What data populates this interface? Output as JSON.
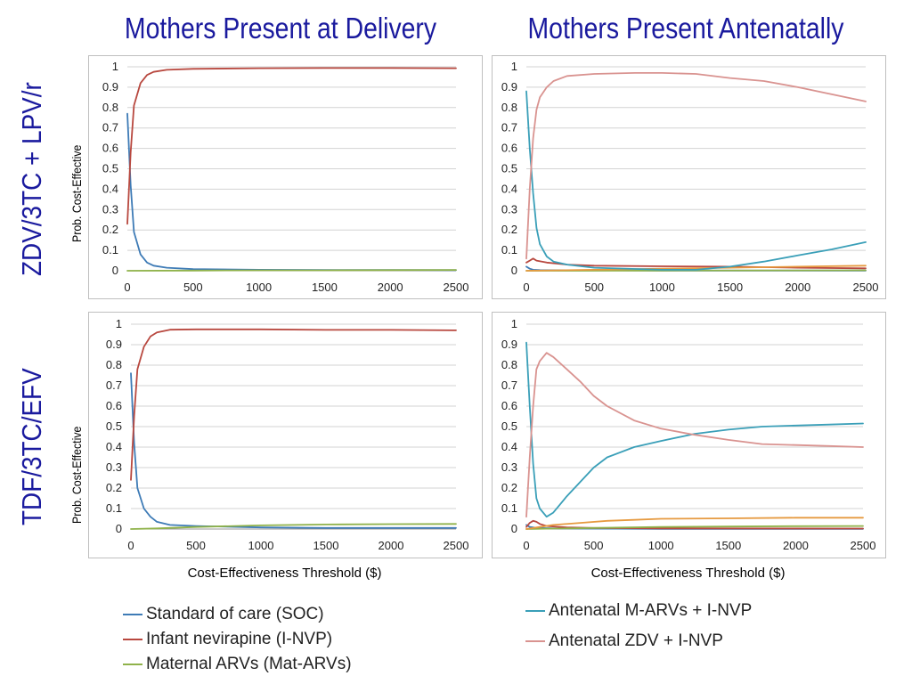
{
  "titles": {
    "col_left": "Mothers Present at Delivery",
    "col_right": "Mothers Present Antenatally",
    "row_top": "ZDV/3TC + LPV/r",
    "row_bottom": "TDF/3TC/EFV"
  },
  "axis": {
    "ylabel": "Prob. Cost-Effective",
    "xlabel": "Cost-Effectiveness Threshold ($)"
  },
  "legend": [
    {
      "key": "soc",
      "label": "Standard of care (SOC)",
      "color": "#3e7bb6"
    },
    {
      "key": "invp",
      "label": "Infant nevirapine (I-NVP)",
      "color": "#b8483f"
    },
    {
      "key": "mat",
      "label": "Maternal ARVs (Mat-ARVs)",
      "color": "#8fb24a"
    },
    {
      "key": "marv",
      "label": "Antenatal M-ARVs + I-NVP",
      "color": "#3a9fb8"
    },
    {
      "key": "zdv",
      "label": "Antenatal ZDV + I-NVP",
      "color": "#d99390"
    }
  ],
  "chart_data": [
    {
      "type": "line",
      "xlim": [
        0,
        2500
      ],
      "ylim": [
        0,
        1
      ],
      "xticks": [
        "0",
        "500",
        "1000",
        "1500",
        "2000",
        "2500"
      ],
      "yticks": [
        "0",
        "0.1",
        "0.2",
        "0.3",
        "0.4",
        "0.5",
        "0.6",
        "0.7",
        "0.8",
        "0.9",
        "1"
      ],
      "grid": true,
      "series": [
        {
          "key": "soc",
          "color": "#3e7bb6",
          "points": [
            [
              0,
              0.77
            ],
            [
              25,
              0.42
            ],
            [
              50,
              0.19
            ],
            [
              100,
              0.08
            ],
            [
              150,
              0.04
            ],
            [
              200,
              0.025
            ],
            [
              300,
              0.015
            ],
            [
              500,
              0.008
            ],
            [
              1000,
              0.005
            ],
            [
              1500,
              0.004
            ],
            [
              2000,
              0.004
            ],
            [
              2500,
              0.003
            ]
          ]
        },
        {
          "key": "invp",
          "color": "#b8483f",
          "points": [
            [
              0,
              0.23
            ],
            [
              25,
              0.58
            ],
            [
              50,
              0.81
            ],
            [
              100,
              0.92
            ],
            [
              150,
              0.96
            ],
            [
              200,
              0.975
            ],
            [
              300,
              0.985
            ],
            [
              500,
              0.99
            ],
            [
              1000,
              0.993
            ],
            [
              1500,
              0.994
            ],
            [
              2000,
              0.994
            ],
            [
              2500,
              0.993
            ]
          ]
        },
        {
          "key": "mat",
          "color": "#8fb24a",
          "points": [
            [
              0,
              0
            ],
            [
              500,
              0.001
            ],
            [
              1000,
              0.002
            ],
            [
              1500,
              0.002
            ],
            [
              2000,
              0.003
            ],
            [
              2500,
              0.004
            ]
          ]
        }
      ]
    },
    {
      "type": "line",
      "xlim": [
        0,
        2500
      ],
      "ylim": [
        0,
        1
      ],
      "xticks": [
        "0",
        "500",
        "1000",
        "1500",
        "2000",
        "2500"
      ],
      "yticks": [
        "0",
        "0.1",
        "0.2",
        "0.3",
        "0.4",
        "0.5",
        "0.6",
        "0.7",
        "0.8",
        "0.9",
        "1"
      ],
      "grid": true,
      "series": [
        {
          "key": "soc",
          "color": "#3e7bb6",
          "points": [
            [
              0,
              0.02
            ],
            [
              25,
              0.01
            ],
            [
              50,
              0.005
            ],
            [
              100,
              0.003
            ],
            [
              500,
              0.002
            ],
            [
              1000,
              0.001
            ],
            [
              1500,
              0.001
            ],
            [
              2000,
              0.001
            ],
            [
              2500,
              0.001
            ]
          ]
        },
        {
          "key": "invp",
          "color": "#b8483f",
          "points": [
            [
              0,
              0.04
            ],
            [
              25,
              0.05
            ],
            [
              50,
              0.06
            ],
            [
              75,
              0.05
            ],
            [
              150,
              0.04
            ],
            [
              300,
              0.03
            ],
            [
              500,
              0.025
            ],
            [
              1000,
              0.022
            ],
            [
              1500,
              0.02
            ],
            [
              2000,
              0.015
            ],
            [
              2500,
              0.012
            ]
          ]
        },
        {
          "key": "mat",
          "color": "#8fb24a",
          "points": [
            [
              0,
              0
            ],
            [
              1000,
              0.001
            ],
            [
              2500,
              0.002
            ]
          ]
        },
        {
          "key": "other",
          "color": "#e69a40",
          "points": [
            [
              0,
              0
            ],
            [
              500,
              0.005
            ],
            [
              1000,
              0.01
            ],
            [
              1500,
              0.015
            ],
            [
              2000,
              0.02
            ],
            [
              2500,
              0.025
            ]
          ]
        },
        {
          "key": "marv",
          "color": "#3a9fb8",
          "points": [
            [
              0,
              0.88
            ],
            [
              25,
              0.6
            ],
            [
              50,
              0.38
            ],
            [
              75,
              0.21
            ],
            [
              100,
              0.13
            ],
            [
              150,
              0.07
            ],
            [
              200,
              0.045
            ],
            [
              300,
              0.03
            ],
            [
              500,
              0.015
            ],
            [
              1000,
              0.005
            ],
            [
              1250,
              0.005
            ],
            [
              1500,
              0.02
            ],
            [
              1750,
              0.045
            ],
            [
              2000,
              0.075
            ],
            [
              2250,
              0.105
            ],
            [
              2500,
              0.14
            ]
          ]
        },
        {
          "key": "zdv",
          "color": "#d99390",
          "points": [
            [
              0,
              0.06
            ],
            [
              25,
              0.4
            ],
            [
              50,
              0.65
            ],
            [
              75,
              0.79
            ],
            [
              100,
              0.85
            ],
            [
              150,
              0.9
            ],
            [
              200,
              0.93
            ],
            [
              300,
              0.955
            ],
            [
              500,
              0.965
            ],
            [
              800,
              0.97
            ],
            [
              1000,
              0.97
            ],
            [
              1250,
              0.965
            ],
            [
              1500,
              0.945
            ],
            [
              1750,
              0.93
            ],
            [
              2000,
              0.9
            ],
            [
              2250,
              0.865
            ],
            [
              2500,
              0.83
            ]
          ]
        }
      ]
    },
    {
      "type": "line",
      "xlim": [
        0,
        2500
      ],
      "ylim": [
        0,
        1
      ],
      "xticks": [
        "0",
        "500",
        "1000",
        "1500",
        "2000",
        "2500"
      ],
      "yticks": [
        "0",
        "0.1",
        "0.2",
        "0.3",
        "0.4",
        "0.5",
        "0.6",
        "0.7",
        "0.8",
        "0.9",
        "1"
      ],
      "grid": true,
      "series": [
        {
          "key": "soc",
          "color": "#3e7bb6",
          "points": [
            [
              0,
              0.76
            ],
            [
              25,
              0.42
            ],
            [
              50,
              0.2
            ],
            [
              100,
              0.1
            ],
            [
              150,
              0.06
            ],
            [
              200,
              0.035
            ],
            [
              300,
              0.02
            ],
            [
              500,
              0.015
            ],
            [
              1000,
              0.008
            ],
            [
              1500,
              0.005
            ],
            [
              2000,
              0.005
            ],
            [
              2500,
              0.005
            ]
          ]
        },
        {
          "key": "invp",
          "color": "#b8483f",
          "points": [
            [
              0,
              0.24
            ],
            [
              25,
              0.55
            ],
            [
              50,
              0.78
            ],
            [
              100,
              0.89
            ],
            [
              150,
              0.94
            ],
            [
              200,
              0.96
            ],
            [
              300,
              0.973
            ],
            [
              500,
              0.975
            ],
            [
              1000,
              0.975
            ],
            [
              1500,
              0.972
            ],
            [
              2000,
              0.972
            ],
            [
              2500,
              0.97
            ]
          ]
        },
        {
          "key": "mat",
          "color": "#8fb24a",
          "points": [
            [
              0,
              0
            ],
            [
              200,
              0.003
            ],
            [
              500,
              0.01
            ],
            [
              800,
              0.015
            ],
            [
              1000,
              0.018
            ],
            [
              1500,
              0.022
            ],
            [
              2000,
              0.024
            ],
            [
              2500,
              0.025
            ]
          ]
        }
      ]
    },
    {
      "type": "line",
      "xlim": [
        0,
        2500
      ],
      "ylim": [
        0,
        1
      ],
      "xticks": [
        "0",
        "500",
        "1000",
        "1500",
        "2000",
        "2500"
      ],
      "yticks": [
        "0",
        "0.1",
        "0.2",
        "0.3",
        "0.4",
        "0.5",
        "0.6",
        "0.7",
        "0.8",
        "0.9",
        "1"
      ],
      "grid": true,
      "series": [
        {
          "key": "soc",
          "color": "#3e7bb6",
          "points": [
            [
              0,
              0.02
            ],
            [
              25,
              0.01
            ],
            [
              75,
              0.005
            ],
            [
              200,
              0.003
            ],
            [
              500,
              0.002
            ],
            [
              1000,
              0.001
            ],
            [
              2500,
              0.001
            ]
          ]
        },
        {
          "key": "invp",
          "color": "#b8483f",
          "points": [
            [
              0,
              0.01
            ],
            [
              25,
              0.03
            ],
            [
              50,
              0.04
            ],
            [
              75,
              0.035
            ],
            [
              100,
              0.025
            ],
            [
              150,
              0.015
            ],
            [
              300,
              0.008
            ],
            [
              500,
              0.005
            ],
            [
              1000,
              0.003
            ],
            [
              2500,
              0.002
            ]
          ]
        },
        {
          "key": "mat",
          "color": "#8fb24a",
          "points": [
            [
              0,
              0
            ],
            [
              500,
              0.005
            ],
            [
              1000,
              0.01
            ],
            [
              1500,
              0.012
            ],
            [
              2000,
              0.014
            ],
            [
              2500,
              0.015
            ]
          ]
        },
        {
          "key": "other",
          "color": "#e69a40",
          "points": [
            [
              0,
              0
            ],
            [
              100,
              0.01
            ],
            [
              200,
              0.02
            ],
            [
              400,
              0.03
            ],
            [
              600,
              0.04
            ],
            [
              800,
              0.045
            ],
            [
              1000,
              0.05
            ],
            [
              1500,
              0.052
            ],
            [
              2000,
              0.055
            ],
            [
              2500,
              0.055
            ]
          ]
        },
        {
          "key": "marv",
          "color": "#3a9fb8",
          "points": [
            [
              0,
              0.91
            ],
            [
              25,
              0.6
            ],
            [
              50,
              0.32
            ],
            [
              75,
              0.15
            ],
            [
              100,
              0.1
            ],
            [
              150,
              0.06
            ],
            [
              200,
              0.08
            ],
            [
              250,
              0.12
            ],
            [
              300,
              0.16
            ],
            [
              400,
              0.23
            ],
            [
              500,
              0.3
            ],
            [
              600,
              0.35
            ],
            [
              800,
              0.4
            ],
            [
              1000,
              0.43
            ],
            [
              1250,
              0.465
            ],
            [
              1500,
              0.485
            ],
            [
              1750,
              0.5
            ],
            [
              2000,
              0.505
            ],
            [
              2250,
              0.51
            ],
            [
              2500,
              0.515
            ]
          ]
        },
        {
          "key": "zdv",
          "color": "#d99390",
          "points": [
            [
              0,
              0.06
            ],
            [
              25,
              0.35
            ],
            [
              50,
              0.6
            ],
            [
              75,
              0.78
            ],
            [
              100,
              0.82
            ],
            [
              150,
              0.86
            ],
            [
              200,
              0.84
            ],
            [
              300,
              0.78
            ],
            [
              400,
              0.72
            ],
            [
              500,
              0.65
            ],
            [
              600,
              0.6
            ],
            [
              800,
              0.53
            ],
            [
              1000,
              0.49
            ],
            [
              1250,
              0.46
            ],
            [
              1500,
              0.435
            ],
            [
              1750,
              0.415
            ],
            [
              2000,
              0.41
            ],
            [
              2250,
              0.405
            ],
            [
              2500,
              0.4
            ]
          ]
        }
      ]
    }
  ]
}
